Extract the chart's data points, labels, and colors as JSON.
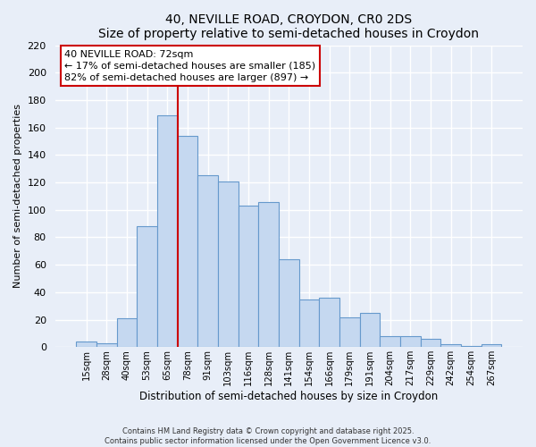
{
  "title": "40, NEVILLE ROAD, CROYDON, CR0 2DS",
  "subtitle": "Size of property relative to semi-detached houses in Croydon",
  "xlabel": "Distribution of semi-detached houses by size in Croydon",
  "ylabel": "Number of semi-detached properties",
  "bar_labels": [
    "15sqm",
    "28sqm",
    "40sqm",
    "53sqm",
    "65sqm",
    "78sqm",
    "91sqm",
    "103sqm",
    "116sqm",
    "128sqm",
    "141sqm",
    "154sqm",
    "166sqm",
    "179sqm",
    "191sqm",
    "204sqm",
    "217sqm",
    "229sqm",
    "242sqm",
    "254sqm",
    "267sqm"
  ],
  "bar_values": [
    4,
    3,
    21,
    88,
    169,
    154,
    125,
    121,
    103,
    106,
    64,
    35,
    36,
    22,
    25,
    8,
    8,
    6,
    2,
    1,
    2
  ],
  "bar_color": "#c5d8f0",
  "bar_edge_color": "#6699cc",
  "vline_color": "#cc0000",
  "annotation_title": "40 NEVILLE ROAD: 72sqm",
  "annotation_line1": "← 17% of semi-detached houses are smaller (185)",
  "annotation_line2": "82% of semi-detached houses are larger (897) →",
  "ylim": [
    0,
    220
  ],
  "yticks": [
    0,
    20,
    40,
    60,
    80,
    100,
    120,
    140,
    160,
    180,
    200,
    220
  ],
  "footnote1": "Contains HM Land Registry data © Crown copyright and database right 2025.",
  "footnote2": "Contains public sector information licensed under the Open Government Licence v3.0.",
  "background_color": "#e8eef8",
  "plot_bg_color": "#e8eef8",
  "grid_color": "#ffffff"
}
